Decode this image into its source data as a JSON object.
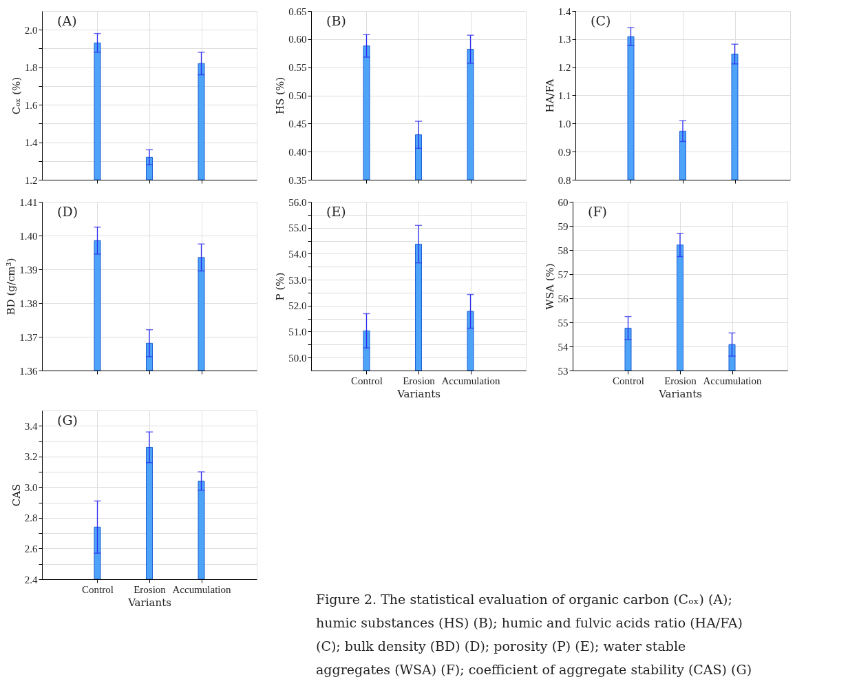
{
  "chart_data": [
    {
      "type": "bar",
      "title": "(A)",
      "ylabel": "Cₒₓ (%)",
      "categories": [
        null,
        null,
        null
      ],
      "values": [
        1.93,
        1.32,
        1.82
      ],
      "errors": [
        0.05,
        0.04,
        0.06
      ],
      "color": "#4da3f7",
      "ylim": [
        1.2,
        2.1
      ],
      "yticks": [
        1.2,
        {
          "value": 1.3,
          "label": null
        },
        1.4,
        {
          "value": 1.5,
          "label": null
        },
        1.6,
        {
          "value": 1.7,
          "label": null
        },
        1.8,
        {
          "value": 1.9,
          "label": null
        },
        {
          "value": 2.0,
          "label": "2.0"
        }
      ],
      "grid": true,
      "tick_labels": "y"
    },
    {
      "type": "bar",
      "title": "(B)",
      "ylabel": "HS (%)",
      "categories": [
        null,
        null,
        null
      ],
      "values": [
        0.588,
        0.43,
        0.582
      ],
      "errors": [
        0.02,
        0.024,
        0.025
      ],
      "color": "#4da3f7",
      "ylim": [
        0.35,
        0.65
      ],
      "yticks": [
        0.35,
        {
          "value": 0.4,
          "label": "0.40"
        },
        0.45,
        {
          "value": 0.5,
          "label": "0.50"
        },
        0.55,
        {
          "value": 0.6,
          "label": "0.60"
        },
        0.65
      ],
      "grid": true,
      "tick_labels": "y"
    },
    {
      "type": "bar",
      "title": "(C)",
      "ylabel": "HA/FA",
      "categories": [
        null,
        null,
        null
      ],
      "values": [
        1.309,
        0.973,
        1.247
      ],
      "errors": [
        0.032,
        0.037,
        0.035
      ],
      "color": "#4da3f7",
      "ylim": [
        0.8,
        1.4
      ],
      "yticks": [
        0.8,
        0.9,
        {
          "value": 1.0,
          "label": "1.0"
        },
        1.1,
        1.2,
        1.3,
        1.4
      ],
      "grid": true,
      "tick_labels": "y"
    },
    {
      "type": "bar",
      "title": "(D)",
      "ylabel": "BD (g/cm³)",
      "categories": [
        null,
        null,
        null
      ],
      "values": [
        1.3985,
        1.3681,
        1.3935
      ],
      "errors": [
        0.004,
        0.004,
        0.004
      ],
      "color": "#4da3f7",
      "ylim": [
        1.36,
        1.41
      ],
      "yticks": [
        1.36,
        1.37,
        1.38,
        1.39,
        {
          "value": 1.4,
          "label": "1.40"
        },
        1.41
      ],
      "grid": true,
      "tick_labels": "y"
    },
    {
      "type": "bar",
      "title": "(E)",
      "xlabel": "Variants",
      "ylabel": "P (%)",
      "categories": [
        "Control",
        "Erosion",
        "Accumulation"
      ],
      "values": [
        51.03,
        54.37,
        51.78
      ],
      "errors": [
        0.66,
        0.72,
        0.65
      ],
      "color": "#4da3f7",
      "ylim": [
        49.5,
        56.0
      ],
      "yticks": [
        {
          "value": 50.0,
          "label": "50.0"
        },
        {
          "value": 50.5,
          "label": null
        },
        {
          "value": 51.0,
          "label": "51.0"
        },
        {
          "value": 51.5,
          "label": null
        },
        {
          "value": 52.0,
          "label": "52.0"
        },
        {
          "value": 52.5,
          "label": null
        },
        {
          "value": 53.0,
          "label": "53.0"
        },
        {
          "value": 53.5,
          "label": null
        },
        {
          "value": 54.0,
          "label": "54.0"
        },
        {
          "value": 54.5,
          "label": null
        },
        {
          "value": 55.0,
          "label": "55.0"
        },
        {
          "value": 55.5,
          "label": null
        },
        {
          "value": 56.0,
          "label": "56.0"
        }
      ],
      "grid": true
    },
    {
      "type": "bar",
      "title": "(F)",
      "xlabel": "Variants",
      "ylabel": "WSA (%)",
      "categories": [
        "Control",
        "Erosion",
        "Accumulation"
      ],
      "values": [
        54.76,
        58.21,
        54.08
      ],
      "errors": [
        0.48,
        0.48,
        0.48
      ],
      "color": "#4da3f7",
      "ylim": [
        53,
        60
      ],
      "yticks": [
        53,
        54,
        55,
        56,
        57,
        58,
        59,
        60
      ],
      "grid": true
    },
    {
      "type": "bar",
      "title": "(G)",
      "xlabel": "Variants",
      "ylabel": "CAS",
      "categories": [
        "Control",
        "Erosion",
        "Accumulation"
      ],
      "values": [
        2.74,
        3.26,
        3.04
      ],
      "errors": [
        0.17,
        0.1,
        0.06
      ],
      "color": "#4da3f7",
      "ylim": [
        2.4,
        3.5
      ],
      "yticks": [
        2.4,
        {
          "value": 2.5,
          "label": null
        },
        2.6,
        {
          "value": 2.7,
          "label": null
        },
        2.8,
        {
          "value": 2.9,
          "label": null
        },
        {
          "value": 3.0,
          "label": "3.0"
        },
        {
          "value": 3.1,
          "label": null
        },
        3.2,
        {
          "value": 3.3,
          "label": null
        },
        3.4
      ],
      "grid": true
    },
    {
      "type": "other",
      "annotations": [
        "Figure 2. The statistical evaluation of organic carbon (Cₒₓ) (A); humic substances (HS) (B); humic and fulvic acids ratio (HA/FA) (C); bulk density (BD) (D); porosity (P) (E); water stable aggregates (WSA) (F); coefficient of aggregate stability (CAS) (G)"
      ]
    }
  ]
}
